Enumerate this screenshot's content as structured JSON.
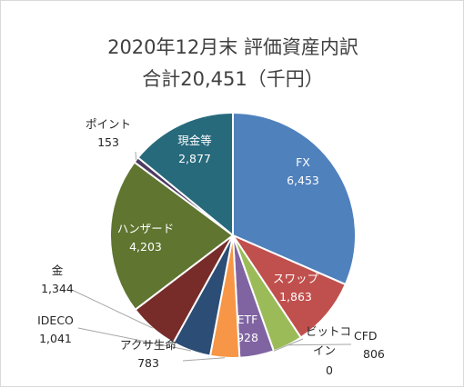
{
  "chart_data": {
    "type": "pie",
    "title": "2020年12月末  評価資産内訳",
    "subtitle": "合計20,451（千円）",
    "slices": [
      {
        "name": "FX",
        "value": 6453,
        "value_label": "6,453",
        "color": "#4f81bd"
      },
      {
        "name": "スワップ",
        "value": 1863,
        "value_label": "1,863",
        "color": "#c0504d"
      },
      {
        "name": "CFD",
        "value": 806,
        "value_label": "806",
        "color": "#9bbb59"
      },
      {
        "name": "ビットコイン",
        "value": 0,
        "value_label": "0",
        "color": "#ffffff"
      },
      {
        "name": "ETF",
        "value": 928,
        "value_label": "928",
        "color": "#8064a2"
      },
      {
        "name": "アクサ生命",
        "value": 783,
        "value_label": "783",
        "color": "#f79646"
      },
      {
        "name": "IDECO",
        "value": 1041,
        "value_label": "1,041",
        "color": "#2c4d75"
      },
      {
        "name": "金",
        "value": 1344,
        "value_label": "1,344",
        "color": "#772c2a"
      },
      {
        "name": "ハンザード",
        "value": 4203,
        "value_label": "4,203",
        "color": "#5f7530"
      },
      {
        "name": "ポイント",
        "value": 153,
        "value_label": "153",
        "color": "#4d3b62"
      },
      {
        "name": "現金等",
        "value": 2877,
        "value_label": "2,877",
        "color": "#276a7c"
      }
    ]
  }
}
